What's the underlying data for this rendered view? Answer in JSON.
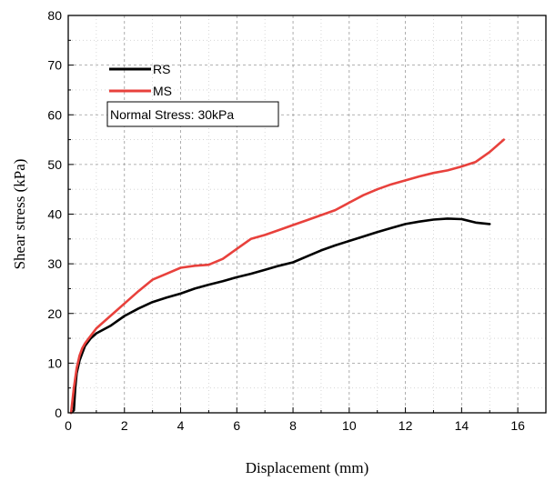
{
  "chart_data": {
    "type": "line",
    "xlabel": "Displacement (mm)",
    "ylabel": "Shear stress (kPa)",
    "xlim": [
      0,
      17
    ],
    "ylim": [
      0,
      80
    ],
    "xticks": [
      0,
      2,
      4,
      6,
      8,
      10,
      12,
      14,
      16
    ],
    "yticks": [
      0,
      10,
      20,
      30,
      40,
      50,
      60,
      70,
      80
    ],
    "grid": true,
    "legend": {
      "placement": "top-left",
      "note": "Normal Stress: 30kPa"
    },
    "series": [
      {
        "name": "RS",
        "color": "#000000",
        "x": [
          0.1,
          0.2,
          0.25,
          0.3,
          0.4,
          0.5,
          0.6,
          0.8,
          1.0,
          1.5,
          2.0,
          2.5,
          3.0,
          3.5,
          4.0,
          4.5,
          5.0,
          5.5,
          6.0,
          6.5,
          7.0,
          7.5,
          8.0,
          8.5,
          9.0,
          9.5,
          10.0,
          10.5,
          11.0,
          11.5,
          12.0,
          12.5,
          13.0,
          13.5,
          14.0,
          14.5,
          15.0
        ],
        "y": [
          0,
          0.5,
          5,
          8,
          10.5,
          12,
          13.5,
          15,
          16,
          17.5,
          19.5,
          21,
          22.3,
          23.2,
          24,
          25,
          25.8,
          26.5,
          27.3,
          28,
          28.8,
          29.6,
          30.3,
          31.5,
          32.7,
          33.7,
          34.6,
          35.5,
          36.4,
          37.2,
          38,
          38.5,
          38.9,
          39.1,
          39,
          38.3,
          38
        ]
      },
      {
        "name": "MS",
        "color": "#e8413c",
        "x": [
          0.1,
          0.2,
          0.3,
          0.4,
          0.5,
          0.6,
          0.8,
          1.0,
          1.5,
          2.0,
          2.5,
          3.0,
          3.5,
          4.0,
          4.5,
          5.0,
          5.5,
          6.0,
          6.5,
          7.0,
          7.5,
          8.0,
          8.5,
          9.0,
          9.5,
          10.0,
          10.5,
          11.0,
          11.5,
          12.0,
          12.5,
          13.0,
          13.5,
          14.0,
          14.5,
          15.0,
          15.5
        ],
        "y": [
          0,
          5,
          9,
          11.5,
          13,
          14,
          15.5,
          17,
          19.5,
          22,
          24.5,
          26.8,
          28,
          29.2,
          29.6,
          29.8,
          31,
          33,
          35,
          35.8,
          36.8,
          37.8,
          38.8,
          39.8,
          40.8,
          42.3,
          43.8,
          45,
          46,
          46.8,
          47.6,
          48.3,
          48.8,
          49.6,
          50.5,
          52.5,
          55
        ]
      }
    ]
  }
}
